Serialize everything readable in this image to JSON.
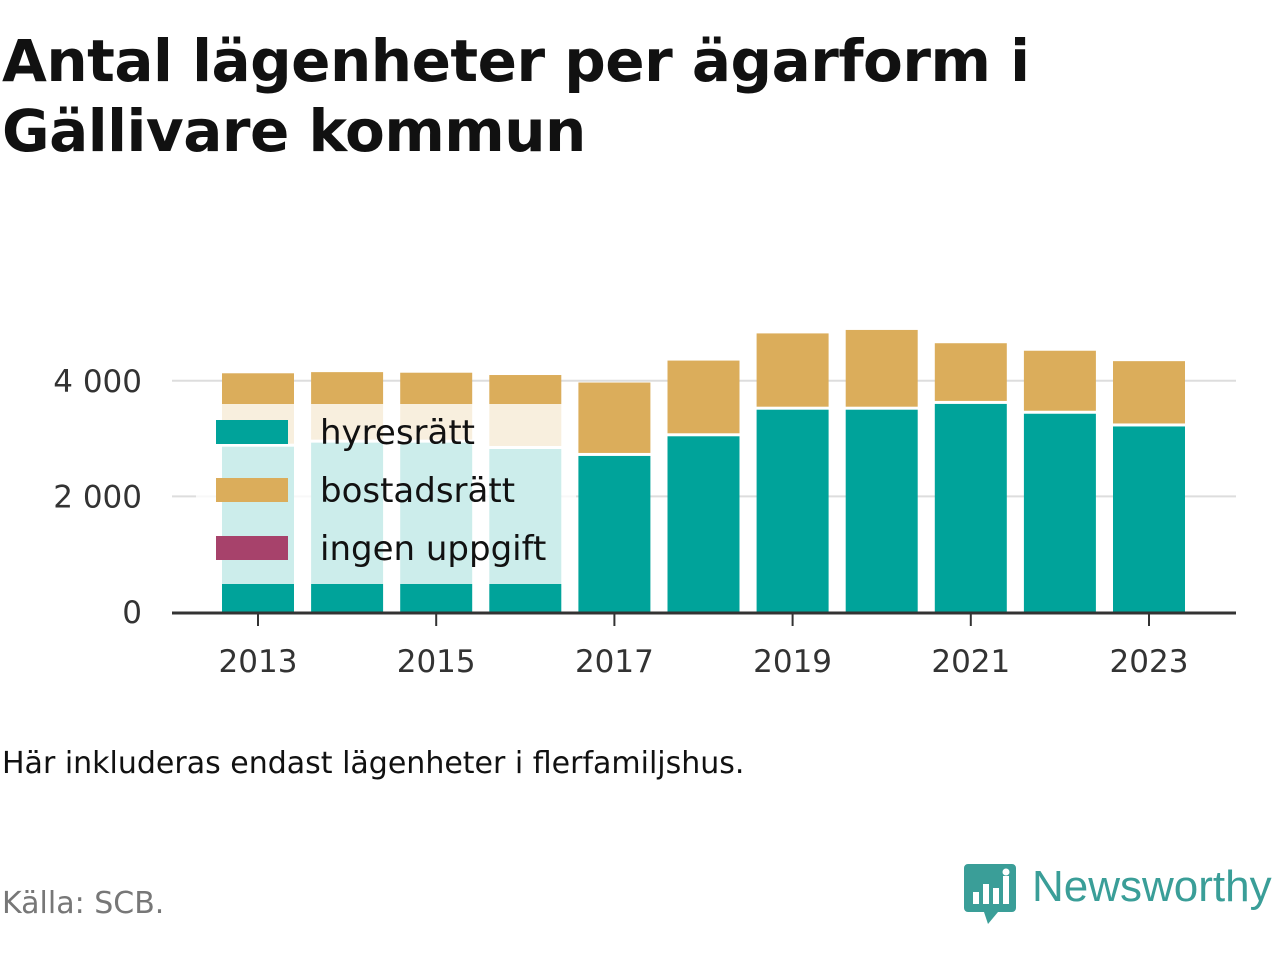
{
  "title": "Antal lägenheter per ägarform i Gällivare kommun",
  "note": "Här inkluderas endast lägenheter i flerfamiljshus.",
  "source": "Källa: SCB.",
  "brand": {
    "name": "Newsworthy",
    "icon": "newsworthy-bar-chart-logo-icon",
    "color": "#3a9e98"
  },
  "chart_data": {
    "type": "bar",
    "stacked": true,
    "categories": [
      "2013",
      "2014",
      "2015",
      "2016",
      "2017",
      "2018",
      "2019",
      "2020",
      "2021",
      "2022",
      "2023"
    ],
    "series": [
      {
        "name": "hyresrätt",
        "color": "#00a39a",
        "values": [
          2860,
          2930,
          2930,
          2820,
          2700,
          3040,
          3500,
          3500,
          3600,
          3430,
          3210
        ]
      },
      {
        "name": "bostadsrätt",
        "color": "#dbad5b",
        "values": [
          1270,
          1220,
          1210,
          1280,
          1270,
          1310,
          1320,
          1380,
          1050,
          1090,
          1130
        ]
      },
      {
        "name": "ingen uppgift",
        "color": "#a7426b",
        "values": [
          0,
          0,
          0,
          0,
          0,
          0,
          0,
          0,
          0,
          0,
          0
        ]
      }
    ],
    "x_tick_labels": [
      "2013",
      "2015",
      "2017",
      "2019",
      "2021",
      "2023"
    ],
    "y_ticks": [
      0,
      2000,
      4000
    ],
    "y_tick_labels": [
      "0",
      "2 000",
      "4 000"
    ],
    "ylim": [
      0,
      5000
    ],
    "grid": true,
    "legend_position": "top-left"
  }
}
